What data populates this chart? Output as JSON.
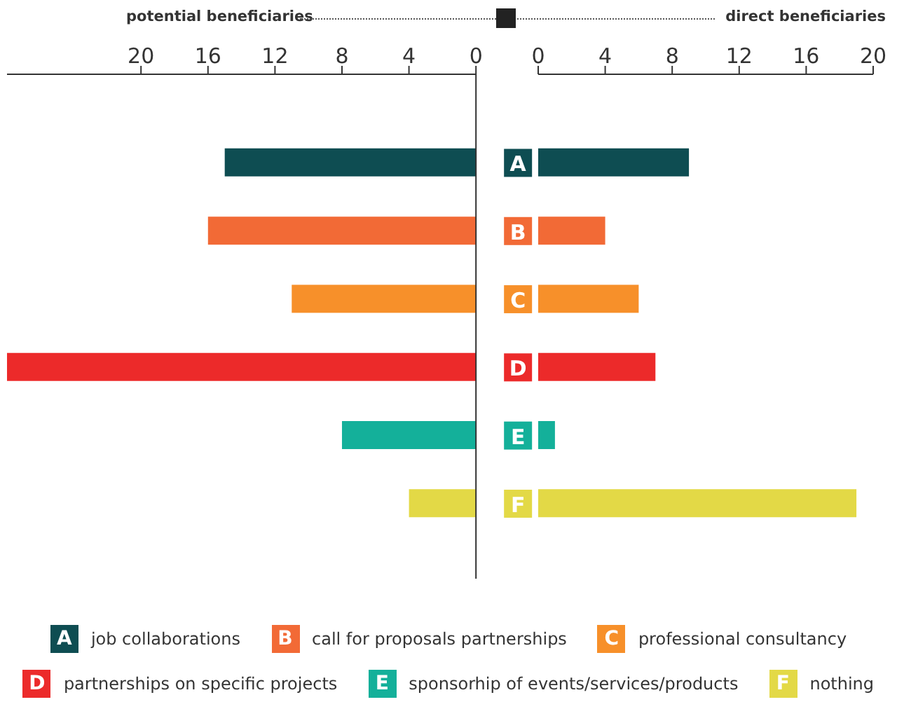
{
  "chart_data": [
    {
      "type": "bar",
      "orientation": "horizontal",
      "title": "potential beneficiaries",
      "categories": [
        "A",
        "B",
        "C",
        "D",
        "E",
        "F"
      ],
      "values": [
        15,
        16,
        11,
        28,
        8,
        4
      ],
      "colors": [
        "#0e4d52",
        "#f26a36",
        "#f7902a",
        "#ec2a2a",
        "#14b09a",
        "#e3d946"
      ],
      "xlim": [
        28,
        0
      ],
      "xticks": [
        20,
        16,
        12,
        8,
        4,
        0
      ],
      "tick_labels": "x"
    },
    {
      "type": "bar",
      "orientation": "horizontal",
      "title": "direct beneficiaries",
      "categories": [
        "A",
        "B",
        "C",
        "D",
        "E",
        "F"
      ],
      "values": [
        9,
        4,
        6,
        7,
        1,
        19
      ],
      "colors": [
        "#0e4d52",
        "#f26a36",
        "#f7902a",
        "#ec2a2a",
        "#14b09a",
        "#e3d946"
      ],
      "xlim": [
        0,
        20
      ],
      "xticks": [
        0,
        4,
        8,
        12,
        16,
        20
      ],
      "tick_labels": "x",
      "annotations": [
        "job collaborations",
        "call for proposals partnerships",
        "professional consultancy",
        "partnerships on specific projects",
        "sponsorhip of events/services/products",
        "nothing"
      ]
    }
  ]
}
